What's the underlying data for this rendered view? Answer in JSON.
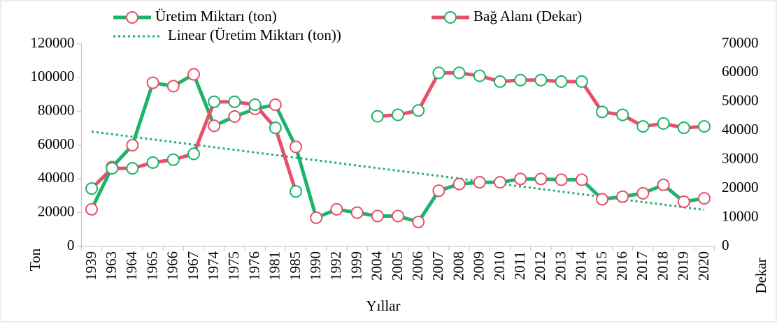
{
  "chart_data": {
    "type": "line",
    "x_label": "Yıllar",
    "y_label": "Ton",
    "y2_label": "Dekar",
    "categories": [
      "1939",
      "1963",
      "1964",
      "1965",
      "1966",
      "1967",
      "1974",
      "1975",
      "1976",
      "1981",
      "1985",
      "1990",
      "1992",
      "1999",
      "2004",
      "2005",
      "2006",
      "2007",
      "2008",
      "2009",
      "2010",
      "2011",
      "2012",
      "2013",
      "2014",
      "2015",
      "2016",
      "2017",
      "2018",
      "2019",
      "2020"
    ],
    "series": [
      {
        "name": "Üretim Miktarı (ton)",
        "color": "#1db36b",
        "marker_color": "#e8506a",
        "axis": "y",
        "values": [
          22000,
          47000,
          60000,
          97000,
          95000,
          102000,
          71500,
          77000,
          81500,
          84000,
          59000,
          17000,
          22000,
          20000,
          18000,
          18000,
          14500,
          33000,
          37000,
          38000,
          38000,
          40000,
          40000,
          39500,
          39500,
          28000,
          29500,
          31500,
          36500,
          26500,
          28500
        ]
      },
      {
        "name": "Bağ Alanı (Dekar)",
        "color": "#e8506a",
        "marker_color": "#1db36b",
        "axis": "y2",
        "values": [
          20000,
          27000,
          27000,
          29000,
          30000,
          32000,
          50000,
          50000,
          49000,
          41000,
          19000,
          null,
          null,
          null,
          45000,
          45500,
          47000,
          60000,
          60000,
          59000,
          57000,
          57500,
          57500,
          57000,
          57000,
          46500,
          45500,
          41500,
          42500,
          41000,
          41500
        ]
      }
    ],
    "trendline": {
      "name": "Linear (Üretim Miktarı (ton))",
      "of_series": 0,
      "color": "#1db36b"
    },
    "ylim": [
      0,
      120000
    ],
    "yticks": [
      0,
      20000,
      40000,
      60000,
      80000,
      100000,
      120000
    ],
    "y2lim": [
      0,
      70000
    ],
    "y2ticks": [
      0,
      10000,
      20000,
      30000,
      40000,
      50000,
      60000,
      70000
    ],
    "legend": "top"
  }
}
